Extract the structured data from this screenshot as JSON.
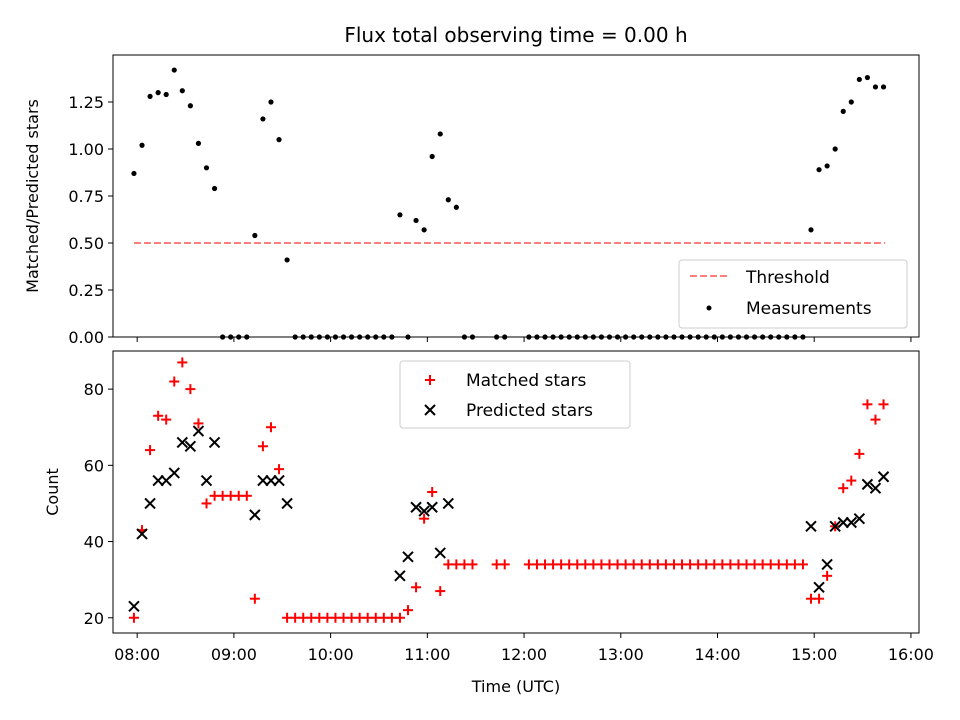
{
  "chart_data": [
    {
      "type": "scatter",
      "title": "Flux total observing time = 0.00 h",
      "xlabel": "",
      "ylabel": "Matched/Predicted stars",
      "xlim": [
        "07:45",
        "16:05"
      ],
      "ylim": [
        0,
        1.5
      ],
      "yticks": [
        "0.00",
        "0.25",
        "0.50",
        "0.75",
        "1.00",
        "1.25"
      ],
      "grid": false,
      "legend_position": "bottom-right",
      "threshold": {
        "name": "Threshold",
        "value": 0.5,
        "x_start": "07:58",
        "x_end": "15:44",
        "color": "#ff7f7f",
        "style": "dashed"
      },
      "series": [
        {
          "name": "Measurements",
          "color": "#000000",
          "points": [
            [
              "07:58",
              0.87
            ],
            [
              "08:03",
              1.02
            ],
            [
              "08:08",
              1.28
            ],
            [
              "08:13",
              1.3
            ],
            [
              "08:18",
              1.29
            ],
            [
              "08:23",
              1.42
            ],
            [
              "08:28",
              1.31
            ],
            [
              "08:33",
              1.23
            ],
            [
              "08:38",
              1.03
            ],
            [
              "08:43",
              0.9
            ],
            [
              "08:48",
              0.79
            ],
            [
              "08:53",
              0
            ],
            [
              "08:58",
              0
            ],
            [
              "09:03",
              0
            ],
            [
              "09:08",
              0
            ],
            [
              "09:13",
              0.54
            ],
            [
              "09:18",
              1.16
            ],
            [
              "09:23",
              1.25
            ],
            [
              "09:28",
              1.05
            ],
            [
              "09:33",
              0.41
            ],
            [
              "09:38",
              0
            ],
            [
              "09:43",
              0
            ],
            [
              "09:48",
              0
            ],
            [
              "09:53",
              0
            ],
            [
              "09:58",
              0
            ],
            [
              "10:03",
              0
            ],
            [
              "10:08",
              0
            ],
            [
              "10:13",
              0
            ],
            [
              "10:18",
              0
            ],
            [
              "10:23",
              0
            ],
            [
              "10:28",
              0
            ],
            [
              "10:33",
              0
            ],
            [
              "10:38",
              0
            ],
            [
              "10:43",
              0.65
            ],
            [
              "10:48",
              0
            ],
            [
              "10:53",
              0.62
            ],
            [
              "10:58",
              0.57
            ],
            [
              "11:03",
              0.96
            ],
            [
              "11:08",
              1.08
            ],
            [
              "11:13",
              0.73
            ],
            [
              "11:18",
              0.69
            ],
            [
              "11:23",
              0
            ],
            [
              "11:28",
              0
            ],
            [
              "11:43",
              0
            ],
            [
              "11:48",
              0
            ],
            [
              "12:03",
              0
            ],
            [
              "12:08",
              0
            ],
            [
              "12:13",
              0
            ],
            [
              "12:18",
              0
            ],
            [
              "12:23",
              0
            ],
            [
              "12:28",
              0
            ],
            [
              "12:33",
              0
            ],
            [
              "12:38",
              0
            ],
            [
              "12:43",
              0
            ],
            [
              "12:48",
              0
            ],
            [
              "12:53",
              0
            ],
            [
              "12:58",
              0
            ],
            [
              "13:03",
              0
            ],
            [
              "13:08",
              0
            ],
            [
              "13:13",
              0
            ],
            [
              "13:18",
              0
            ],
            [
              "13:23",
              0
            ],
            [
              "13:28",
              0
            ],
            [
              "13:33",
              0
            ],
            [
              "13:38",
              0
            ],
            [
              "13:43",
              0
            ],
            [
              "13:48",
              0
            ],
            [
              "13:53",
              0
            ],
            [
              "13:58",
              0
            ],
            [
              "14:03",
              0
            ],
            [
              "14:08",
              0
            ],
            [
              "14:13",
              0
            ],
            [
              "14:18",
              0
            ],
            [
              "14:23",
              0
            ],
            [
              "14:28",
              0
            ],
            [
              "14:33",
              0
            ],
            [
              "14:38",
              0
            ],
            [
              "14:43",
              0
            ],
            [
              "14:48",
              0
            ],
            [
              "14:53",
              0
            ],
            [
              "14:58",
              0.57
            ],
            [
              "15:03",
              0.89
            ],
            [
              "15:08",
              0.91
            ],
            [
              "15:13",
              1.0
            ],
            [
              "15:18",
              1.2
            ],
            [
              "15:23",
              1.25
            ],
            [
              "15:28",
              1.37
            ],
            [
              "15:33",
              1.38
            ],
            [
              "15:38",
              1.33
            ],
            [
              "15:43",
              1.33
            ]
          ]
        }
      ]
    },
    {
      "type": "scatter",
      "title": "",
      "xlabel": "Time (UTC)",
      "ylabel": "Count",
      "xlim": [
        "07:45",
        "16:05"
      ],
      "xticks": [
        "08:00",
        "09:00",
        "10:00",
        "11:00",
        "12:00",
        "13:00",
        "14:00",
        "15:00",
        "16:00"
      ],
      "ylim": [
        16,
        90
      ],
      "yticks": [
        "20",
        "40",
        "60",
        "80"
      ],
      "grid": false,
      "legend_position": "top-center",
      "series": [
        {
          "name": "Matched stars",
          "marker": "plus",
          "color": "#ff0000",
          "points": [
            [
              "07:58",
              20
            ],
            [
              "08:03",
              43
            ],
            [
              "08:08",
              64
            ],
            [
              "08:13",
              73
            ],
            [
              "08:18",
              72
            ],
            [
              "08:23",
              82
            ],
            [
              "08:28",
              87
            ],
            [
              "08:33",
              80
            ],
            [
              "08:38",
              71
            ],
            [
              "08:43",
              50
            ],
            [
              "08:48",
              52
            ],
            [
              "08:53",
              52
            ],
            [
              "08:58",
              52
            ],
            [
              "09:03",
              52
            ],
            [
              "09:08",
              52
            ],
            [
              "09:13",
              25
            ],
            [
              "09:18",
              65
            ],
            [
              "09:23",
              70
            ],
            [
              "09:28",
              59
            ],
            [
              "09:33",
              20
            ],
            [
              "09:38",
              20
            ],
            [
              "09:43",
              20
            ],
            [
              "09:48",
              20
            ],
            [
              "09:53",
              20
            ],
            [
              "09:58",
              20
            ],
            [
              "10:03",
              20
            ],
            [
              "10:08",
              20
            ],
            [
              "10:13",
              20
            ],
            [
              "10:18",
              20
            ],
            [
              "10:23",
              20
            ],
            [
              "10:28",
              20
            ],
            [
              "10:33",
              20
            ],
            [
              "10:38",
              20
            ],
            [
              "10:43",
              20
            ],
            [
              "10:48",
              22
            ],
            [
              "10:53",
              28
            ],
            [
              "10:58",
              46
            ],
            [
              "11:03",
              53
            ],
            [
              "11:08",
              27
            ],
            [
              "11:13",
              34
            ],
            [
              "11:18",
              34
            ],
            [
              "11:23",
              34
            ],
            [
              "11:28",
              34
            ],
            [
              "11:43",
              34
            ],
            [
              "11:48",
              34
            ],
            [
              "12:03",
              34
            ],
            [
              "12:08",
              34
            ],
            [
              "12:13",
              34
            ],
            [
              "12:18",
              34
            ],
            [
              "12:23",
              34
            ],
            [
              "12:28",
              34
            ],
            [
              "12:33",
              34
            ],
            [
              "12:38",
              34
            ],
            [
              "12:43",
              34
            ],
            [
              "12:48",
              34
            ],
            [
              "12:53",
              34
            ],
            [
              "12:58",
              34
            ],
            [
              "13:03",
              34
            ],
            [
              "13:08",
              34
            ],
            [
              "13:13",
              34
            ],
            [
              "13:18",
              34
            ],
            [
              "13:23",
              34
            ],
            [
              "13:28",
              34
            ],
            [
              "13:33",
              34
            ],
            [
              "13:38",
              34
            ],
            [
              "13:43",
              34
            ],
            [
              "13:48",
              34
            ],
            [
              "13:53",
              34
            ],
            [
              "13:58",
              34
            ],
            [
              "14:03",
              34
            ],
            [
              "14:08",
              34
            ],
            [
              "14:13",
              34
            ],
            [
              "14:18",
              34
            ],
            [
              "14:23",
              34
            ],
            [
              "14:28",
              34
            ],
            [
              "14:33",
              34
            ],
            [
              "14:38",
              34
            ],
            [
              "14:43",
              34
            ],
            [
              "14:48",
              34
            ],
            [
              "14:53",
              34
            ],
            [
              "14:58",
              25
            ],
            [
              "15:03",
              25
            ],
            [
              "15:08",
              31
            ],
            [
              "15:13",
              44
            ],
            [
              "15:18",
              54
            ],
            [
              "15:23",
              56
            ],
            [
              "15:28",
              63
            ],
            [
              "15:33",
              76
            ],
            [
              "15:38",
              72
            ],
            [
              "15:43",
              76
            ]
          ]
        },
        {
          "name": "Predicted stars",
          "marker": "x",
          "color": "#000000",
          "points": [
            [
              "07:58",
              23
            ],
            [
              "08:03",
              42
            ],
            [
              "08:08",
              50
            ],
            [
              "08:13",
              56
            ],
            [
              "08:18",
              56
            ],
            [
              "08:23",
              58
            ],
            [
              "08:28",
              66
            ],
            [
              "08:33",
              65
            ],
            [
              "08:38",
              69
            ],
            [
              "08:43",
              56
            ],
            [
              "08:48",
              66
            ],
            [
              "09:13",
              47
            ],
            [
              "09:18",
              56
            ],
            [
              "09:23",
              56
            ],
            [
              "09:28",
              56
            ],
            [
              "09:33",
              50
            ],
            [
              "10:43",
              31
            ],
            [
              "10:48",
              36
            ],
            [
              "10:53",
              49
            ],
            [
              "10:58",
              48
            ],
            [
              "11:03",
              49
            ],
            [
              "11:08",
              37
            ],
            [
              "11:13",
              50
            ],
            [
              "14:58",
              44
            ],
            [
              "15:03",
              28
            ],
            [
              "15:08",
              34
            ],
            [
              "15:13",
              44
            ],
            [
              "15:18",
              45
            ],
            [
              "15:23",
              45
            ],
            [
              "15:28",
              46
            ],
            [
              "15:33",
              55
            ],
            [
              "15:38",
              54
            ],
            [
              "15:43",
              57
            ]
          ]
        }
      ]
    }
  ]
}
